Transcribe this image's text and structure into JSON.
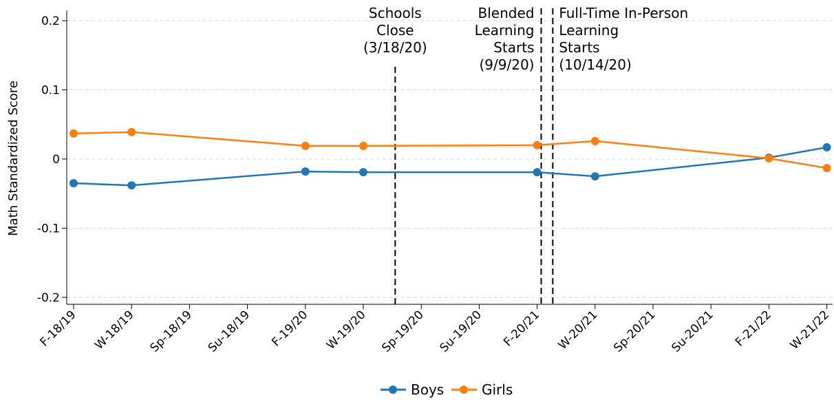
{
  "chart_data": {
    "type": "line",
    "ylabel": "Math Standardized Score",
    "xlabel": "",
    "ylim": [
      -0.21,
      0.215
    ],
    "yticks": [
      0.2,
      0.1,
      0,
      -0.1,
      -0.2
    ],
    "ytick_labels": [
      "0.2",
      "0.1",
      "0",
      "-0.1",
      "-0.2"
    ],
    "grid": true,
    "legend_position": "bottom-center",
    "categories": [
      "F-18/19",
      "W-18/19",
      "Sp-18/19",
      "Su-18/19",
      "F-19/20",
      "W-19/20",
      "Sp-19/20",
      "Su-19/20",
      "F-20/21",
      "W-20/21",
      "Sp-20/21",
      "Su-20/21",
      "F-21/22",
      "W-21/22"
    ],
    "series": [
      {
        "name": "Boys",
        "color": "#1f77b4",
        "points": [
          {
            "x": "F-18/19",
            "y": -0.035
          },
          {
            "x": "W-18/19",
            "y": -0.038
          },
          {
            "x": "F-19/20",
            "y": -0.018
          },
          {
            "x": "W-19/20",
            "y": -0.019
          },
          {
            "x": "F-20/21",
            "y": -0.019
          },
          {
            "x": "W-20/21",
            "y": -0.025
          },
          {
            "x": "F-21/22",
            "y": 0.002
          },
          {
            "x": "W-21/22",
            "y": 0.017
          }
        ]
      },
      {
        "name": "Girls",
        "color": "#ff7f0e",
        "points": [
          {
            "x": "F-18/19",
            "y": 0.037
          },
          {
            "x": "W-18/19",
            "y": 0.039
          },
          {
            "x": "F-19/20",
            "y": 0.019
          },
          {
            "x": "W-19/20",
            "y": 0.019
          },
          {
            "x": "F-20/21",
            "y": 0.02
          },
          {
            "x": "W-20/21",
            "y": 0.026
          },
          {
            "x": "F-21/22",
            "y": 0.001
          },
          {
            "x": "W-21/22",
            "y": -0.013
          }
        ]
      }
    ],
    "annotations": [
      {
        "lines": [
          "Schools",
          "Close",
          "(3/18/20)"
        ],
        "x_index": 5.55,
        "anchor": "middle"
      },
      {
        "lines": [
          "Blended",
          "Learning",
          "Starts",
          "(9/9/20)"
        ],
        "x_index": 8.07,
        "anchor": "end"
      },
      {
        "lines": [
          "Full-Time In-Person",
          "Learning",
          "Starts",
          "(10/14/20)"
        ],
        "x_index": 8.27,
        "anchor": "start"
      }
    ]
  }
}
